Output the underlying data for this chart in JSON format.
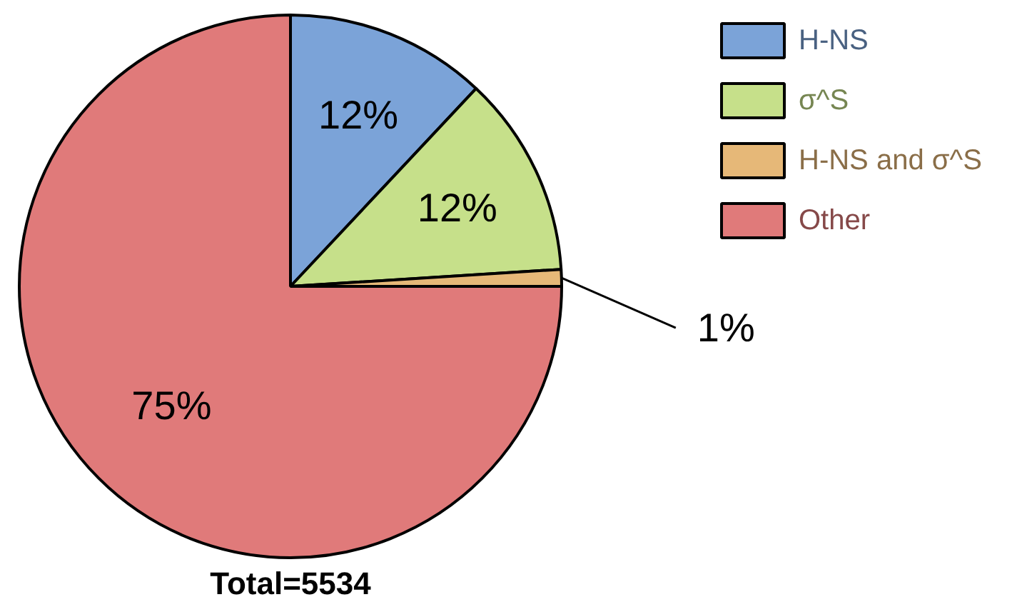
{
  "chart_data": {
    "type": "pie",
    "categories": [
      "H-NS",
      "σ^S",
      "H-NS and σ^S",
      "Other"
    ],
    "values": [
      12,
      12,
      1,
      75
    ],
    "colors": [
      "#7ba3d8",
      "#c6e08a",
      "#e6b878",
      "#e07a7a"
    ],
    "value_labels": [
      "12%",
      "12%",
      "1%",
      "75%"
    ],
    "legend": "top right",
    "annotations": [
      "Total=5534"
    ]
  }
}
